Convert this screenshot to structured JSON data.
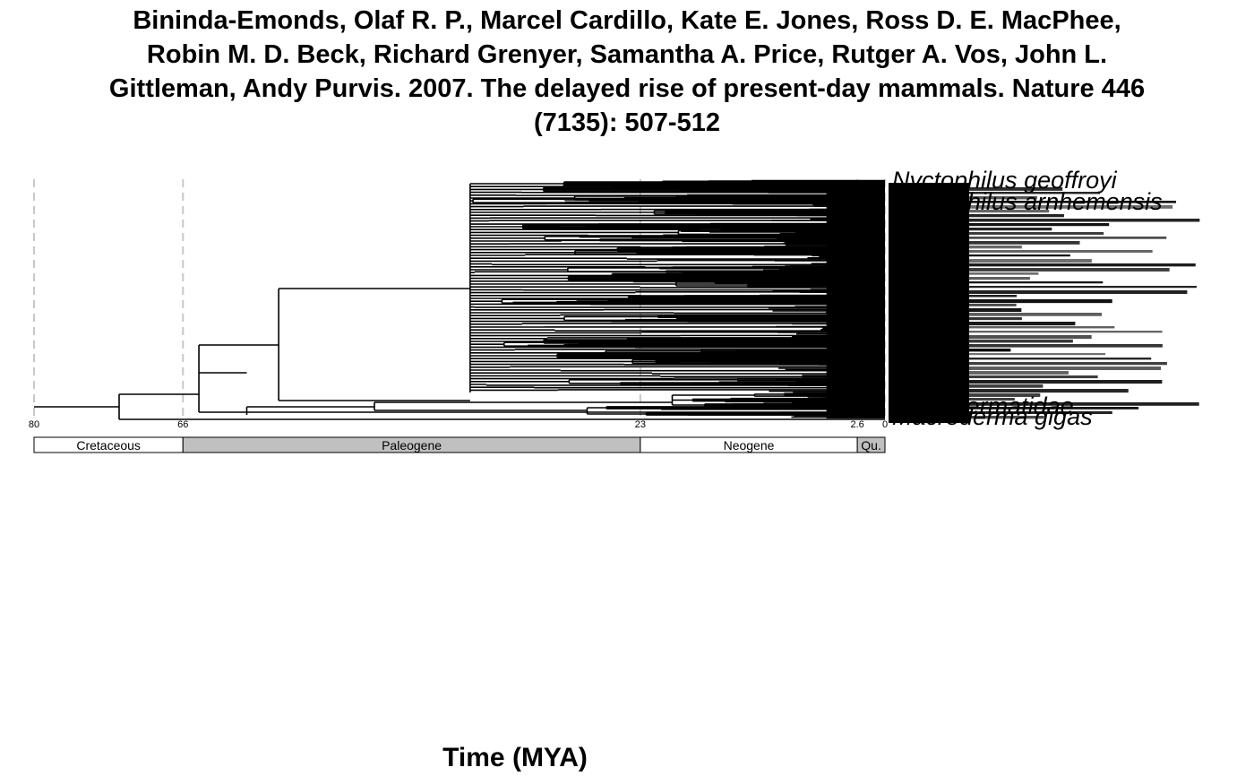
{
  "title_lines": [
    "Bininda-Emonds, Olaf R. P., Marcel Cardillo, Kate E. Jones, Ross D. E. MacPhee,",
    "Robin M. D. Beck, Richard Grenyer, Samantha A. Price, Rutger A. Vos, John L.",
    "Gittleman, Andy Purvis. 2007. The delayed rise of present-day mammals. Nature 446",
    "(7135): 507-512"
  ],
  "x_axis_label": "Time (MYA)",
  "tick_labels": [
    "80",
    "66",
    "23",
    "2.6",
    "0"
  ],
  "tick_values": [
    80,
    66,
    23,
    2.6,
    0
  ],
  "periods": [
    {
      "name": "Cretaceous",
      "start": 80,
      "end": 66,
      "fill": "#ffffff"
    },
    {
      "name": "Paleogene",
      "start": 66,
      "end": 23,
      "fill": "#c0c0c0"
    },
    {
      "name": "Neogene",
      "start": 23,
      "end": 2.6,
      "fill": "#ffffff"
    },
    {
      "name": "Qu.",
      "start": 2.6,
      "end": 0,
      "fill": "#c0c0c0"
    }
  ],
  "legible_tips": [
    "Nyctophilus geoffroyi",
    "Nyctophilus arnhemensis",
    "Megadermatidae",
    "Macroderma gigas"
  ],
  "colors": {
    "line": "#000000",
    "gridline": "#c8c8c8",
    "background": "#ffffff"
  }
}
